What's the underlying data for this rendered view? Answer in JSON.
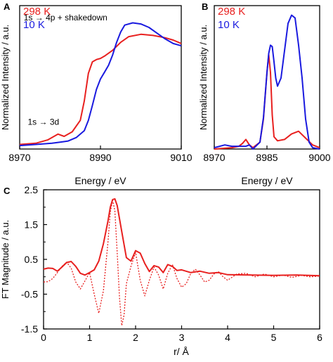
{
  "colors": {
    "red": "#e8201f",
    "blue": "#1a1adf",
    "axis": "#000000"
  },
  "chart_data": [
    {
      "panel_label": "A",
      "type": "line",
      "xlabel": "Energy / eV",
      "ylabel": "Normalized Intensity / a.u.",
      "xlim": [
        8970,
        9010
      ],
      "ylim": [
        0,
        1.25
      ],
      "xticks": [
        8970,
        8990,
        9010
      ],
      "tick_labels": [
        "8970",
        "8990",
        "9010"
      ],
      "show_y_ticks": false,
      "legend": {
        "placement": "top-left"
      },
      "annotations": [
        {
          "text": "1s → 4p + shakedown",
          "x": 8971,
          "y": 1.12
        },
        {
          "text": "1s → 3d",
          "x": 8972,
          "y": 0.21
        }
      ],
      "series": [
        {
          "name": "298 K",
          "color_key": "red",
          "x": [
            8970,
            8974,
            8977,
            8978.5,
            8979.5,
            8981,
            8983,
            8985,
            8986,
            8987,
            8988,
            8989,
            8990,
            8991,
            8993,
            8995,
            8997,
            9000,
            9003,
            9006,
            9008,
            9010
          ],
          "y": [
            0.04,
            0.05,
            0.08,
            0.11,
            0.13,
            0.11,
            0.15,
            0.25,
            0.42,
            0.66,
            0.76,
            0.78,
            0.79,
            0.81,
            0.86,
            0.93,
            0.98,
            1.0,
            0.99,
            0.97,
            0.95,
            0.92
          ]
        },
        {
          "name": "10 K",
          "color_key": "blue",
          "x": [
            8970,
            8974,
            8978,
            8980,
            8982,
            8984,
            8986,
            8987,
            8988,
            8989,
            8990,
            8991,
            8992,
            8993,
            8994,
            8995,
            8996,
            8998,
            9000,
            9002,
            9004,
            9006,
            9008,
            9010
          ],
          "y": [
            0.03,
            0.04,
            0.05,
            0.06,
            0.07,
            0.1,
            0.16,
            0.25,
            0.38,
            0.52,
            0.61,
            0.67,
            0.73,
            0.82,
            0.93,
            1.02,
            1.08,
            1.1,
            1.09,
            1.06,
            1.01,
            0.96,
            0.92,
            0.9
          ]
        }
      ]
    },
    {
      "panel_label": "B",
      "type": "line",
      "xlabel": "Energy / eV",
      "ylabel": "Normalized Intensity / a.u.",
      "xlim": [
        8970,
        9000
      ],
      "ylim": [
        0,
        1.05
      ],
      "xticks": [
        8970,
        8985,
        9000
      ],
      "tick_labels": [
        "8970",
        "8985",
        "9000"
      ],
      "show_y_ticks": false,
      "legend": {
        "placement": "top-left"
      },
      "series": [
        {
          "name": "298 K",
          "color_key": "red",
          "x": [
            8970,
            8975,
            8977,
            8978,
            8979,
            8980,
            8981,
            8983,
            8984,
            8985,
            8985.5,
            8986,
            8986.5,
            8987,
            8988,
            8990,
            8992,
            8994,
            8996,
            8998,
            9000
          ],
          "y": [
            0.0,
            0.01,
            0.02,
            0.04,
            0.07,
            0.03,
            0.01,
            0.05,
            0.22,
            0.56,
            0.69,
            0.56,
            0.25,
            0.09,
            0.06,
            0.07,
            0.11,
            0.13,
            0.08,
            0.03,
            0.01
          ]
        },
        {
          "name": "10 K",
          "color_key": "blue",
          "x": [
            8970,
            8973,
            8975,
            8977,
            8979,
            8980,
            8981,
            8983,
            8984,
            8985,
            8985.5,
            8986,
            8986.5,
            8987,
            8987.5,
            8988,
            8989,
            8990,
            8991,
            8992,
            8993,
            8994,
            8995,
            8996,
            8997,
            8998,
            9000
          ],
          "y": [
            0.01,
            0.03,
            0.02,
            0.02,
            0.02,
            0.03,
            0.0,
            0.05,
            0.23,
            0.56,
            0.7,
            0.76,
            0.75,
            0.64,
            0.52,
            0.46,
            0.52,
            0.72,
            0.92,
            0.98,
            0.96,
            0.76,
            0.52,
            0.22,
            0.05,
            0.01,
            0.0
          ]
        }
      ]
    },
    {
      "panel_label": "C",
      "type": "line",
      "xlabel": "r/ Å",
      "ylabel": "FT Magnitude / a.u.",
      "xlim": [
        0,
        6
      ],
      "ylim": [
        -1.5,
        2.5
      ],
      "xticks": [
        0,
        1,
        2,
        3,
        4,
        5,
        6
      ],
      "tick_labels": [
        "0",
        "1",
        "2",
        "3",
        "4",
        "5",
        "6"
      ],
      "yticks": [
        2.5,
        1.5,
        0.5,
        -0.5,
        -1.5
      ],
      "ytick_labels": [
        "2.5",
        "1.5",
        "0.5",
        "-0.5",
        "-1.5"
      ],
      "series": [
        {
          "color_key": "red",
          "style": "solid",
          "x": [
            0,
            0.1,
            0.2,
            0.3,
            0.4,
            0.5,
            0.6,
            0.7,
            0.8,
            0.9,
            1.0,
            1.1,
            1.2,
            1.3,
            1.4,
            1.45,
            1.5,
            1.55,
            1.6,
            1.7,
            1.8,
            1.9,
            2.0,
            2.1,
            2.2,
            2.3,
            2.4,
            2.5,
            2.6,
            2.7,
            2.8,
            2.9,
            3.0,
            3.2,
            3.4,
            3.6,
            3.8,
            4.0,
            4.5,
            5.0,
            5.5,
            6.0
          ],
          "y": [
            0.22,
            0.25,
            0.24,
            0.16,
            0.28,
            0.41,
            0.44,
            0.3,
            0.1,
            0.05,
            0.12,
            0.2,
            0.45,
            0.95,
            1.6,
            2.0,
            2.22,
            2.24,
            2.05,
            1.3,
            0.55,
            0.45,
            0.75,
            0.68,
            0.38,
            0.15,
            0.32,
            0.28,
            0.12,
            0.35,
            0.3,
            0.18,
            0.2,
            0.12,
            0.16,
            0.1,
            0.12,
            0.06,
            0.05,
            0.04,
            0.05,
            0.03
          ]
        },
        {
          "color_key": "red",
          "style": "dotted",
          "x": [
            0,
            0.1,
            0.2,
            0.3,
            0.4,
            0.5,
            0.6,
            0.7,
            0.8,
            0.9,
            1.0,
            1.1,
            1.2,
            1.3,
            1.4,
            1.45,
            1.5,
            1.55,
            1.6,
            1.65,
            1.7,
            1.75,
            1.8,
            1.9,
            2.0,
            2.1,
            2.2,
            2.3,
            2.4,
            2.5,
            2.6,
            2.7,
            2.8,
            2.9,
            3.0,
            3.1,
            3.2,
            3.3,
            3.4,
            3.5,
            3.6,
            3.7,
            3.8,
            3.9,
            4.0,
            4.2,
            4.4,
            4.6,
            4.8,
            5.0,
            5.2,
            5.4,
            5.6,
            5.8,
            6.0
          ],
          "y": [
            -0.15,
            -0.14,
            -0.05,
            0.12,
            0.3,
            0.42,
            0.25,
            -0.15,
            -0.35,
            -0.12,
            0.12,
            -0.5,
            -1.05,
            -0.4,
            1.0,
            1.85,
            2.2,
            1.9,
            0.7,
            -0.6,
            -1.4,
            -1.1,
            -0.2,
            0.3,
            0.7,
            -0.1,
            -0.55,
            -0.1,
            0.28,
            0.05,
            -0.35,
            0.1,
            0.35,
            -0.05,
            -0.3,
            -0.2,
            0.1,
            0.22,
            0.05,
            -0.15,
            -0.1,
            0.08,
            0.15,
            0.0,
            -0.1,
            0.08,
            0.1,
            0.0,
            0.08,
            0.0,
            0.05,
            -0.02,
            0.04,
            0.0,
            0.02
          ]
        }
      ]
    }
  ]
}
